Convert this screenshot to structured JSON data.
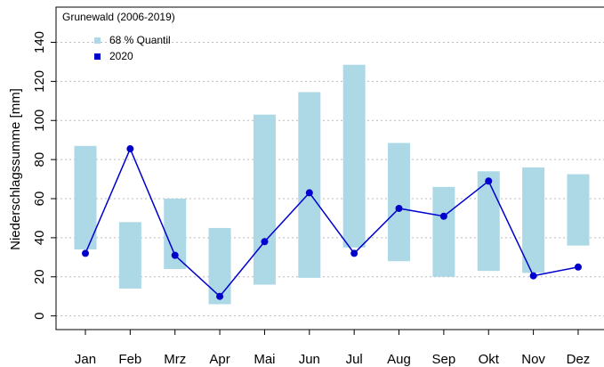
{
  "chart_data": {
    "type": "floating-bar-line",
    "y_label": "Niederschlagssumme [mm]",
    "legend_title": "Grunewald (2006-2019)",
    "legend_position": "top-left",
    "grid": true,
    "categories": [
      "Jan",
      "Feb",
      "Mrz",
      "Apr",
      "Mai",
      "Jun",
      "Jul",
      "Aug",
      "Sep",
      "Okt",
      "Nov",
      "Dez"
    ],
    "ranges": {
      "name": "68 % Quantil",
      "color": "#add8e6",
      "low": [
        34,
        14,
        24,
        6,
        16,
        19.5,
        35,
        28,
        20,
        23,
        22,
        36
      ],
      "high": [
        87,
        48,
        60,
        45,
        103,
        114.5,
        128.5,
        88.5,
        66,
        74,
        76,
        72.5
      ]
    },
    "series": [
      {
        "name": "2020",
        "color": "#0000cd",
        "values": [
          32,
          85.5,
          31,
          10,
          38,
          63,
          32,
          55,
          51,
          69,
          20.5,
          25
        ]
      }
    ],
    "ylim": [
      -7,
      158
    ],
    "yticks": [
      0,
      20,
      40,
      60,
      80,
      100,
      120,
      140
    ]
  }
}
